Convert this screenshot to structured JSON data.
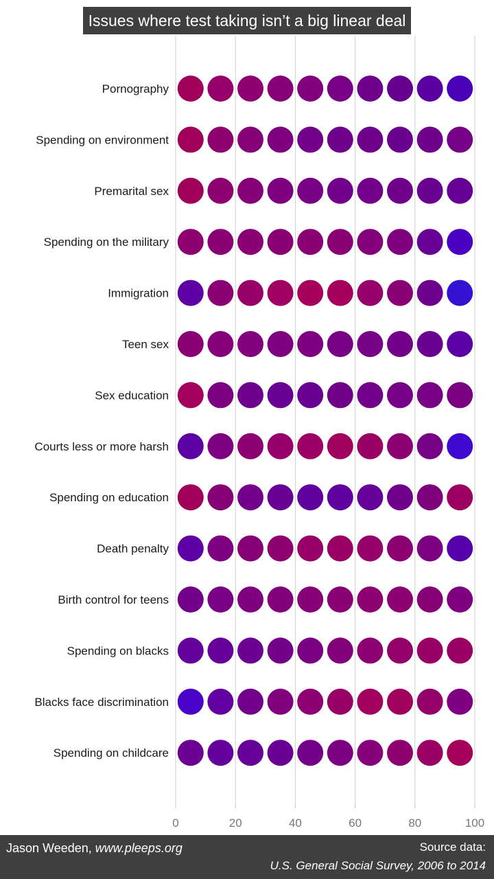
{
  "chart_data": {
    "type": "scatter",
    "title": "Issues where test taking isn’t a big linear deal",
    "x_ticks": [
      0,
      20,
      40,
      60,
      80,
      100
    ],
    "xlim": [
      0,
      100
    ],
    "x": [
      5,
      15,
      25,
      35,
      45,
      55,
      65,
      75,
      85,
      95
    ],
    "grid": "vertical",
    "rows": [
      {
        "label": "Pornography",
        "colors": [
          "#a0005a",
          "#96006a",
          "#8e0072",
          "#880078",
          "#82007e",
          "#780086",
          "#6e008c",
          "#66008e",
          "#5a00a0",
          "#4a00b6"
        ]
      },
      {
        "label": "Spending on environment",
        "colors": [
          "#a0005a",
          "#8e006e",
          "#860078",
          "#7e007e",
          "#720088",
          "#6e008c",
          "#6e008c",
          "#6a008e",
          "#6e008c",
          "#760086"
        ]
      },
      {
        "label": "Premarital sex",
        "colors": [
          "#a0005a",
          "#8c0070",
          "#860078",
          "#7e007e",
          "#780084",
          "#72008a",
          "#72008a",
          "#6e008c",
          "#6a0090",
          "#660094"
        ]
      },
      {
        "label": "Spending on the military",
        "colors": [
          "#8e006e",
          "#8a0074",
          "#8a0074",
          "#8a0074",
          "#8a0074",
          "#8a0074",
          "#840078",
          "#7e007e",
          "#680096",
          "#4a00c0"
        ]
      },
      {
        "label": "Immigration",
        "colors": [
          "#5e00a4",
          "#8a0074",
          "#960068",
          "#a00062",
          "#a4005c",
          "#a4005c",
          "#96006a",
          "#8a0074",
          "#6e008e",
          "#3412d2"
        ]
      },
      {
        "label": "Teen sex",
        "colors": [
          "#8a0074",
          "#86007a",
          "#82007e",
          "#7e0080",
          "#7e0080",
          "#780084",
          "#760086",
          "#720088",
          "#6a0090",
          "#5a00a4"
        ]
      },
      {
        "label": "Sex education",
        "colors": [
          "#a2005c",
          "#7c0082",
          "#6e008e",
          "#680094",
          "#6a0092",
          "#700088",
          "#72008a",
          "#760086",
          "#780084",
          "#7a0082"
        ]
      },
      {
        "label": "Courts less or more harsh",
        "colors": [
          "#5c00a4",
          "#7e0082",
          "#8c0072",
          "#96006a",
          "#9c0064",
          "#a0005e",
          "#9a0064",
          "#8c0072",
          "#760086",
          "#3e0ad0"
        ]
      },
      {
        "label": "Spending on education",
        "colors": [
          "#a0005a",
          "#860076",
          "#72008a",
          "#680094",
          "#60009e",
          "#60009e",
          "#66009a",
          "#6e008c",
          "#7e007c",
          "#9c0060"
        ]
      },
      {
        "label": "Death penalty",
        "colors": [
          "#5e00a6",
          "#7c0080",
          "#860076",
          "#8e0070",
          "#960068",
          "#9a0064",
          "#96006a",
          "#8c0072",
          "#7c0082",
          "#5600ac"
        ]
      },
      {
        "label": "Birth control for teens",
        "colors": [
          "#720088",
          "#780084",
          "#7e007e",
          "#82007a",
          "#860076",
          "#8a0074",
          "#8c0072",
          "#8c0072",
          "#860076",
          "#7e007e"
        ]
      },
      {
        "label": "Spending on blacks",
        "colors": [
          "#64009c",
          "#66009a",
          "#6c0092",
          "#720088",
          "#7a0082",
          "#82007a",
          "#8c0072",
          "#94006a",
          "#980066",
          "#9a0064"
        ]
      },
      {
        "label": "Blacks face discrimination",
        "colors": [
          "#4a02c8",
          "#6200a2",
          "#72008a",
          "#80007e",
          "#8e0072",
          "#980068",
          "#a2005e",
          "#a0005e",
          "#94006a",
          "#7e0080"
        ]
      },
      {
        "label": "Spending on childcare",
        "colors": [
          "#6c0094",
          "#64009c",
          "#660098",
          "#6a0094",
          "#720088",
          "#7c0082",
          "#86007a",
          "#8e0070",
          "#9a0064",
          "#a4005a"
        ]
      }
    ]
  },
  "footer": {
    "author": "Jason Weeden, ",
    "site": "www.pleeps.org",
    "source_label": "Source data:",
    "source_name": "U.S. General Social Survey, 2006 to 2014"
  }
}
